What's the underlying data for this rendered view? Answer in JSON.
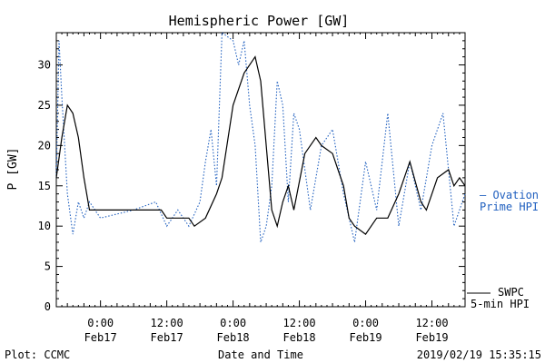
{
  "chart_data": {
    "type": "line",
    "title": "Hemispheric Power [GW]",
    "ylabel": "P [GW]",
    "xlabel": "Date and Time",
    "ylim": [
      0,
      34
    ],
    "xlim": [
      "2019-02-16T16:00",
      "2019-02-19T18:00"
    ],
    "y_ticks": [
      "0",
      "5",
      "10",
      "15",
      "20",
      "25",
      "30"
    ],
    "x_ticks": [
      {
        "time": "0:00",
        "date": "Feb17",
        "x": "2019-02-17T00:00"
      },
      {
        "time": "12:00",
        "date": "Feb17",
        "x": "2019-02-17T12:00"
      },
      {
        "time": "0:00",
        "date": "Feb18",
        "x": "2019-02-18T00:00"
      },
      {
        "time": "12:00",
        "date": "Feb18",
        "x": "2019-02-18T12:00"
      },
      {
        "time": "0:00",
        "date": "Feb19",
        "x": "2019-02-19T00:00"
      },
      {
        "time": "12:00",
        "date": "Feb19",
        "x": "2019-02-19T12:00"
      }
    ],
    "series": [
      {
        "name": "SWPC 5-min HPI",
        "color": "#000000",
        "style": "solid",
        "points": [
          [
            "2019-02-16T16:00",
            16
          ],
          [
            "2019-02-16T17:00",
            21
          ],
          [
            "2019-02-16T18:00",
            25
          ],
          [
            "2019-02-16T19:00",
            24
          ],
          [
            "2019-02-16T20:00",
            21
          ],
          [
            "2019-02-16T21:00",
            16
          ],
          [
            "2019-02-16T22:00",
            12
          ],
          [
            "2019-02-17T00:00",
            12
          ],
          [
            "2019-02-17T06:00",
            12
          ],
          [
            "2019-02-17T11:00",
            12
          ],
          [
            "2019-02-17T12:00",
            11
          ],
          [
            "2019-02-17T16:00",
            11
          ],
          [
            "2019-02-17T17:00",
            10
          ],
          [
            "2019-02-17T19:00",
            11
          ],
          [
            "2019-02-17T21:00",
            14
          ],
          [
            "2019-02-17T22:00",
            16
          ],
          [
            "2019-02-18T00:00",
            25
          ],
          [
            "2019-02-18T02:00",
            29
          ],
          [
            "2019-02-18T04:00",
            31
          ],
          [
            "2019-02-18T05:00",
            28
          ],
          [
            "2019-02-18T06:00",
            20
          ],
          [
            "2019-02-18T07:00",
            12
          ],
          [
            "2019-02-18T08:00",
            10
          ],
          [
            "2019-02-18T09:00",
            13
          ],
          [
            "2019-02-18T10:00",
            15
          ],
          [
            "2019-02-18T11:00",
            12
          ],
          [
            "2019-02-18T13:00",
            19
          ],
          [
            "2019-02-18T15:00",
            21
          ],
          [
            "2019-02-18T16:00",
            20
          ],
          [
            "2019-02-18T18:00",
            19
          ],
          [
            "2019-02-18T19:00",
            17
          ],
          [
            "2019-02-18T20:00",
            15
          ],
          [
            "2019-02-18T21:00",
            11
          ],
          [
            "2019-02-18T22:00",
            10
          ],
          [
            "2019-02-19T00:00",
            9
          ],
          [
            "2019-02-19T02:00",
            11
          ],
          [
            "2019-02-19T04:00",
            11
          ],
          [
            "2019-02-19T06:00",
            14
          ],
          [
            "2019-02-19T08:00",
            18
          ],
          [
            "2019-02-19T10:00",
            13
          ],
          [
            "2019-02-19T11:00",
            12
          ],
          [
            "2019-02-19T13:00",
            16
          ],
          [
            "2019-02-19T15:00",
            17
          ],
          [
            "2019-02-19T16:00",
            15
          ],
          [
            "2019-02-19T17:00",
            16
          ],
          [
            "2019-02-19T18:00",
            15
          ]
        ]
      },
      {
        "name": "Ovation Prime HPI",
        "color": "#1f5fbf",
        "style": "dotted",
        "points": [
          [
            "2019-02-16T16:00",
            16
          ],
          [
            "2019-02-16T16:30",
            33
          ],
          [
            "2019-02-16T17:00",
            26
          ],
          [
            "2019-02-16T18:00",
            14
          ],
          [
            "2019-02-16T19:00",
            9
          ],
          [
            "2019-02-16T20:00",
            13
          ],
          [
            "2019-02-16T21:00",
            11
          ],
          [
            "2019-02-16T22:00",
            13
          ],
          [
            "2019-02-17T00:00",
            11
          ],
          [
            "2019-02-17T06:00",
            12
          ],
          [
            "2019-02-17T10:00",
            13
          ],
          [
            "2019-02-17T12:00",
            10
          ],
          [
            "2019-02-17T14:00",
            12
          ],
          [
            "2019-02-17T16:00",
            10
          ],
          [
            "2019-02-17T18:00",
            13
          ],
          [
            "2019-02-17T19:00",
            18
          ],
          [
            "2019-02-17T20:00",
            22
          ],
          [
            "2019-02-17T21:00",
            15
          ],
          [
            "2019-02-17T22:00",
            34
          ],
          [
            "2019-02-18T00:00",
            33
          ],
          [
            "2019-02-18T01:00",
            30
          ],
          [
            "2019-02-18T02:00",
            33
          ],
          [
            "2019-02-18T03:00",
            25
          ],
          [
            "2019-02-18T04:00",
            20
          ],
          [
            "2019-02-18T05:00",
            8
          ],
          [
            "2019-02-18T06:00",
            10
          ],
          [
            "2019-02-18T07:00",
            15
          ],
          [
            "2019-02-18T08:00",
            28
          ],
          [
            "2019-02-18T09:00",
            25
          ],
          [
            "2019-02-18T10:00",
            13
          ],
          [
            "2019-02-18T11:00",
            24
          ],
          [
            "2019-02-18T12:00",
            22
          ],
          [
            "2019-02-18T14:00",
            12
          ],
          [
            "2019-02-18T16:00",
            20
          ],
          [
            "2019-02-18T18:00",
            22
          ],
          [
            "2019-02-18T20:00",
            14
          ],
          [
            "2019-02-18T22:00",
            8
          ],
          [
            "2019-02-19T00:00",
            18
          ],
          [
            "2019-02-19T02:00",
            12
          ],
          [
            "2019-02-19T04:00",
            24
          ],
          [
            "2019-02-19T06:00",
            10
          ],
          [
            "2019-02-19T08:00",
            18
          ],
          [
            "2019-02-19T10:00",
            12
          ],
          [
            "2019-02-19T12:00",
            20
          ],
          [
            "2019-02-19T14:00",
            24
          ],
          [
            "2019-02-19T16:00",
            10
          ],
          [
            "2019-02-19T18:00",
            14
          ]
        ]
      }
    ]
  },
  "legend": {
    "swpc_line1": "SWPC",
    "swpc_line2": "5-min HPI",
    "ovation_line1": "— Ovation",
    "ovation_line2": "Prime HPI"
  },
  "footer": {
    "left": "Plot: CCMC",
    "center": "Date and Time",
    "right": "2019/02/19 15:35:15"
  }
}
